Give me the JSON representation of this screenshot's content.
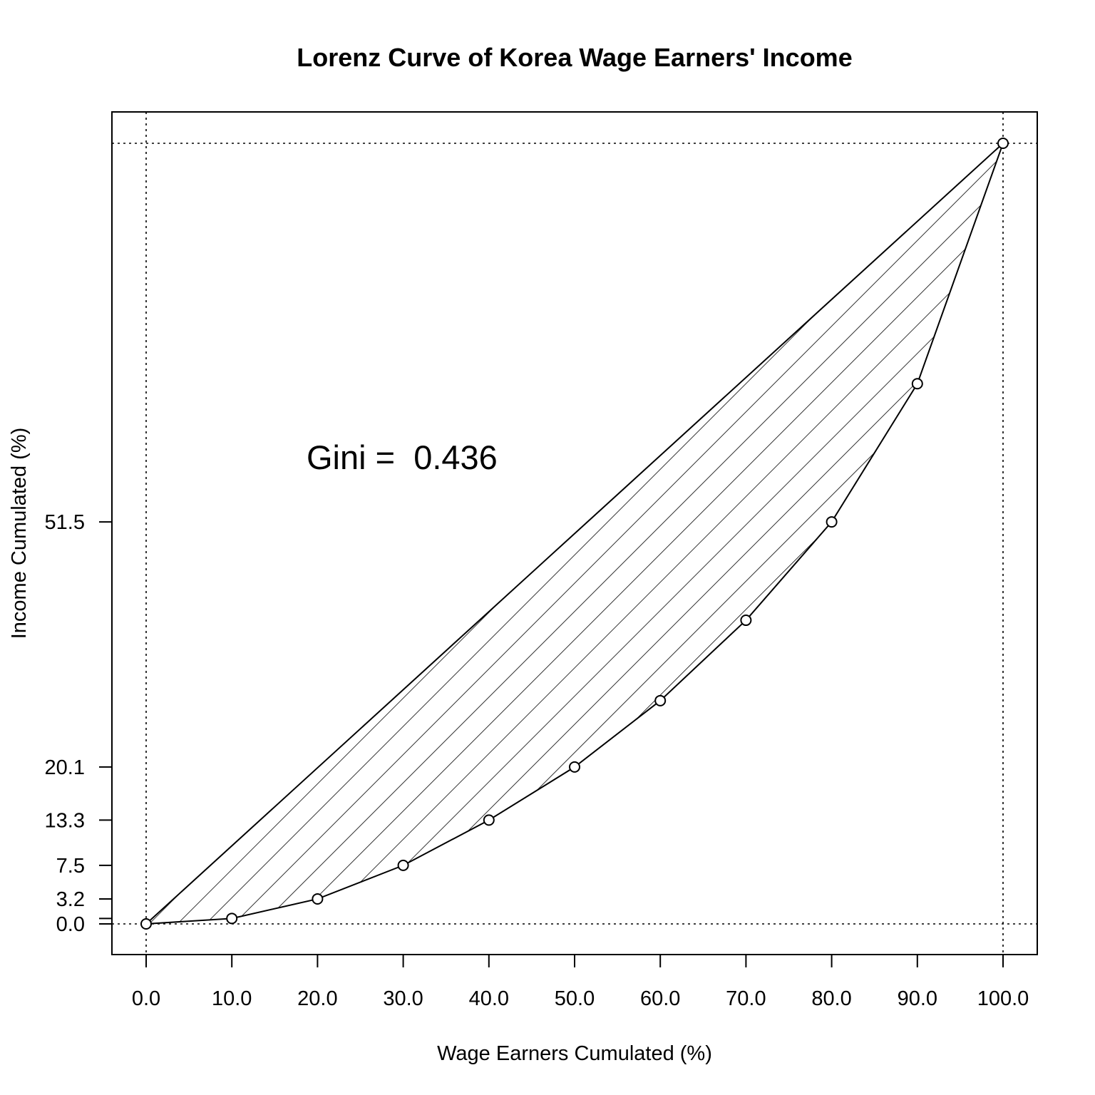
{
  "chart_data": {
    "type": "line",
    "title": "Lorenz Curve of Korea Wage Earners' Income",
    "xlabel": "Wage Earners Cumulated (%)",
    "ylabel": "Income Cumulated (%)",
    "annotation": "Gini =  0.436",
    "xlim": [
      0,
      100
    ],
    "ylim": [
      0,
      100
    ],
    "x_ticks": [
      "0.0",
      "10.0",
      "20.0",
      "30.0",
      "40.0",
      "50.0",
      "60.0",
      "70.0",
      "80.0",
      "90.0",
      "100.0"
    ],
    "y_ticks": [
      "0.0",
      "3.2",
      "7.5",
      "13.3",
      "20.1",
      "51.5"
    ],
    "y_tick_values": [
      0.0,
      3.2,
      7.5,
      13.3,
      20.1,
      51.5
    ],
    "x": [
      0,
      10,
      20,
      30,
      40,
      50,
      60,
      70,
      80,
      90,
      100
    ],
    "y": [
      0.0,
      0.7,
      3.2,
      7.5,
      13.3,
      20.1,
      28.6,
      38.9,
      51.5,
      69.2,
      100.0
    ],
    "equality_line": true,
    "shading": "hatched",
    "grid": false
  }
}
